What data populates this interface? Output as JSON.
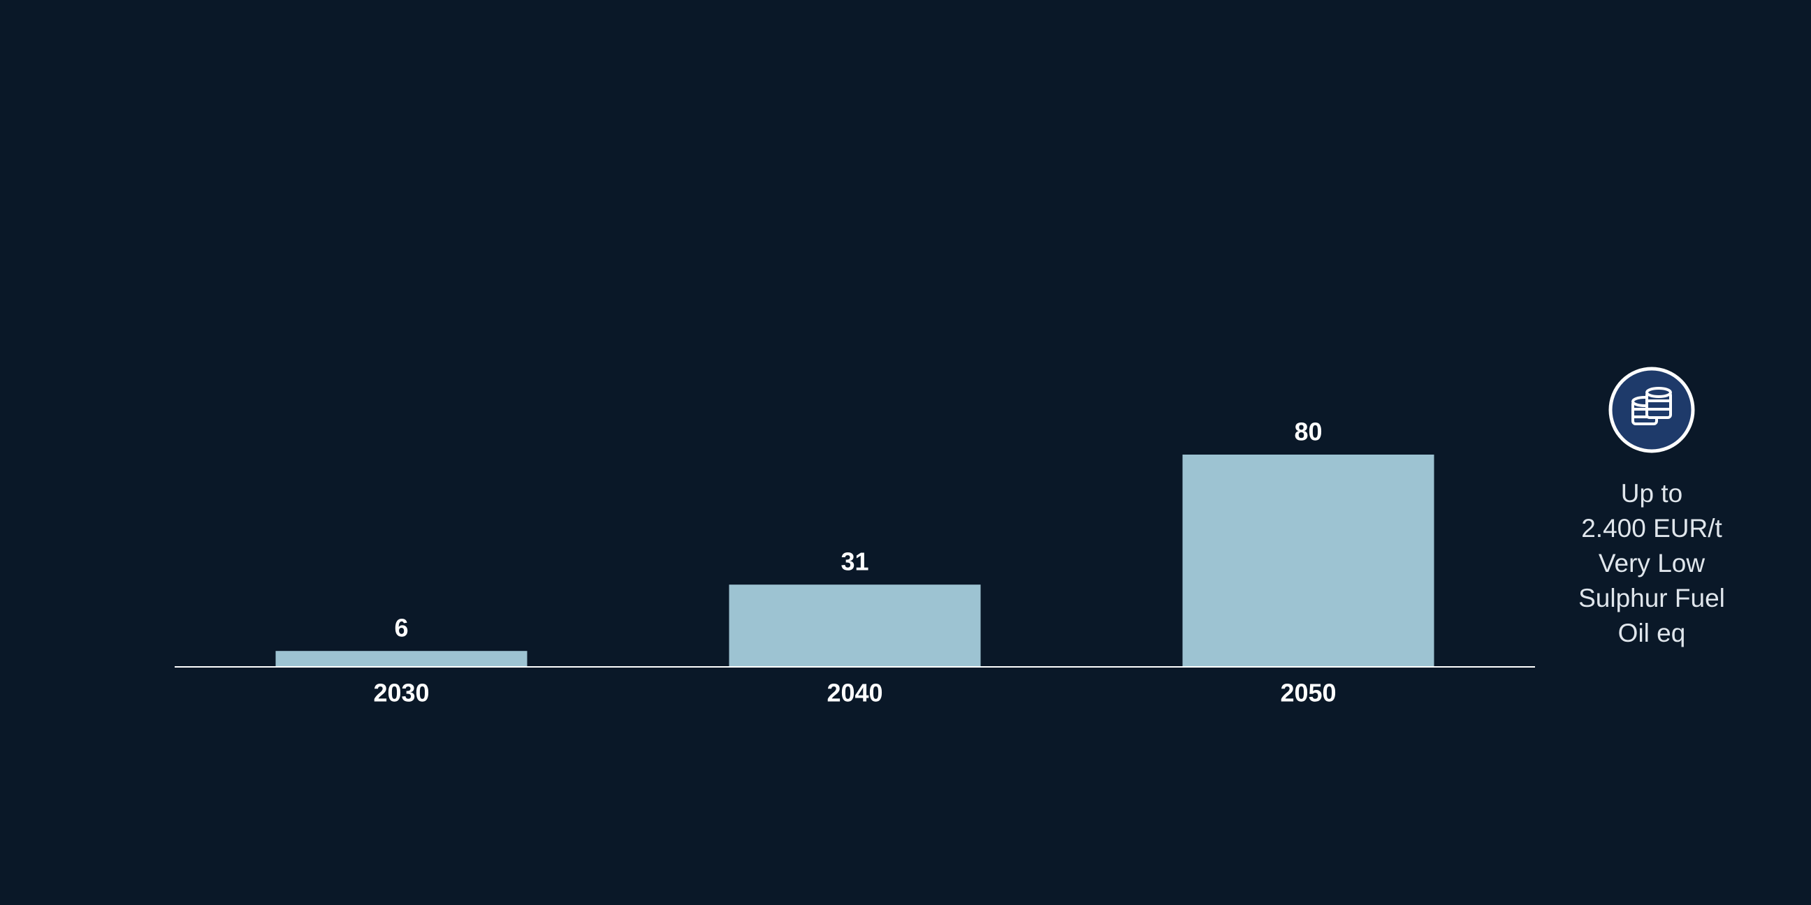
{
  "chart_data": {
    "type": "bar",
    "categories": [
      "2030",
      "2040",
      "2050"
    ],
    "values": [
      6,
      31,
      80
    ],
    "color": "#9dc3d2",
    "annotation": [
      "Up to",
      "2.400 EUR/t",
      "Very Low",
      "Sulphur Fuel",
      "Oil eq"
    ]
  }
}
